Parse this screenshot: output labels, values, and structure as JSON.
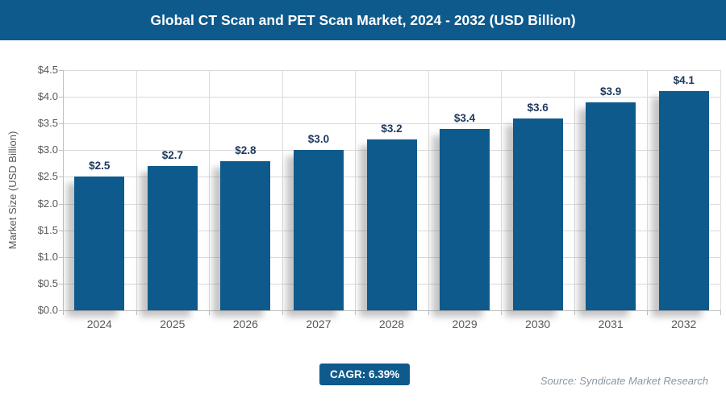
{
  "header": {
    "title": "Global CT Scan and PET Scan Market, 2024 - 2032 (USD Billion)"
  },
  "footer": {
    "cagr_label": "CAGR: 6.39%",
    "source": "Source: Syndicate Market Research"
  },
  "colors": {
    "primary_blue": "#0e5a8c",
    "data_label_navy": "#1f3a60",
    "tick_label_gray": "#595959",
    "gridline_gray": "#d9d9d9",
    "axis_line_gray": "#bfbfbf",
    "source_text_gray": "#8a97a3",
    "title_text": "#ffffff"
  },
  "chart_data": {
    "type": "bar",
    "title": "Global CT Scan and PET Scan Market, 2024 - 2032 (USD Billion)",
    "categories": [
      "2024",
      "2025",
      "2026",
      "2027",
      "2028",
      "2029",
      "2030",
      "2031",
      "2032"
    ],
    "values": [
      2.5,
      2.7,
      2.8,
      3.0,
      3.2,
      3.4,
      3.6,
      3.9,
      4.1
    ],
    "bar_labels": [
      "$2.5",
      "$2.7",
      "$2.8",
      "$3.0",
      "$3.2",
      "$3.4",
      "$3.6",
      "$3.9",
      "$4.1"
    ],
    "xlabel": "",
    "ylabel": "Market Size (USD Billion)",
    "ylim": [
      0,
      4.5
    ],
    "ytick_step": 0.5,
    "ytick_labels": [
      "$0.0",
      "$0.5",
      "$1.0",
      "$1.5",
      "$2.0",
      "$2.5",
      "$3.0",
      "$3.5",
      "$4.0",
      "$4.5"
    ],
    "grid": true,
    "legend": false,
    "bar_color": "#0e5a8c"
  }
}
